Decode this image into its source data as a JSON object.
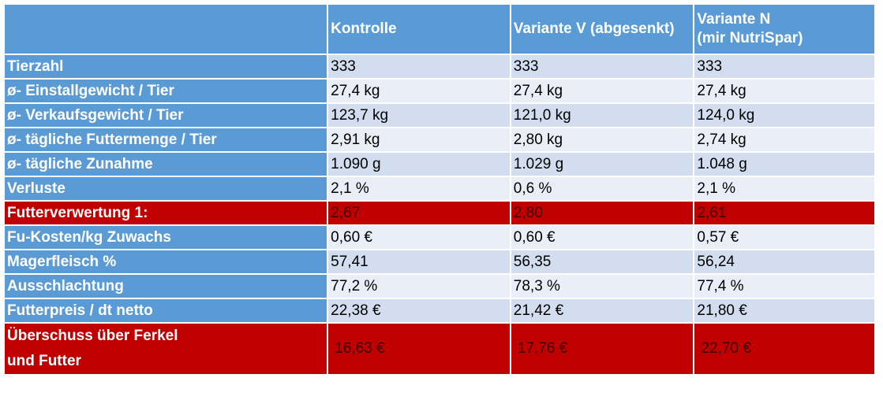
{
  "header": {
    "blank": "",
    "col1": "Kontrolle",
    "col2": "Variante V (abgesenkt)",
    "col3_line1": "Variante N",
    "col3_line2": "(mir NutriSpar)"
  },
  "rows": [
    {
      "label": "Tierzahl",
      "v1": "333",
      "v2": "333",
      "v3": "333"
    },
    {
      "label": "ø- Einstallgewicht / Tier",
      "v1": "27,4 kg",
      "v2": "27,4 kg",
      "v3": "27,4 kg"
    },
    {
      "label": "ø- Verkaufsgewicht / Tier",
      "v1": "123,7 kg",
      "v2": "121,0 kg",
      "v3": "124,0 kg"
    },
    {
      "label": "ø- tägliche Futtermenge / Tier",
      "v1": "2,91 kg",
      "v2": "2,80 kg",
      "v3": "2,74 kg"
    },
    {
      "label": "ø- tägliche Zunahme",
      "v1": "1.090 g",
      "v2": "1.029 g",
      "v3": "1.048 g"
    },
    {
      "label": "Verluste",
      "v1": "2,1 %",
      "v2": "0,6 %",
      "v3": "2,1 %"
    },
    {
      "label": "Futterverwertung 1:",
      "v1": "2,67",
      "v2": "2,80",
      "v3": "2,61"
    },
    {
      "label": "Fu-Kosten/kg Zuwachs",
      "v1": "0,60 €",
      "v2": "0,60 €",
      "v3": "0,57 €"
    },
    {
      "label": "Magerfleisch %",
      "v1": "57,41",
      "v2": "56,35",
      "v3": "56,24"
    },
    {
      "label": "Ausschlachtung",
      "v1": "77,2 %",
      "v2": "78,3 %",
      "v3": "77,4 %"
    },
    {
      "label": "Futterpreis / dt netto",
      "v1": "22,38 €",
      "v2": "21,42 €",
      "v3": "21,80 €"
    },
    {
      "label_line1": "Überschuss über Ferkel",
      "label_line2": "und Futter",
      "v1": "16,63 €",
      "v2": "17,76 €",
      "v3": "22,70 €"
    }
  ],
  "colors": {
    "header_blue": "#5b9bd5",
    "row_light": "#d2deef",
    "row_lighter": "#eaeff7",
    "highlight_red": "#c00000"
  }
}
